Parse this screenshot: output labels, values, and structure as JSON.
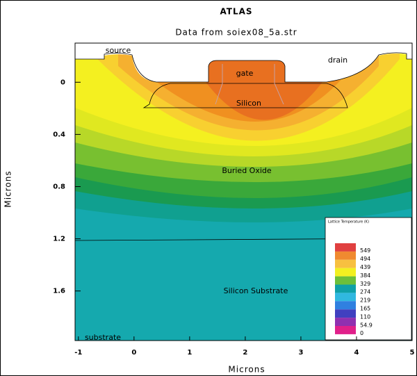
{
  "chart_data": {
    "type": "contour",
    "title": "ATLAS",
    "subtitle": "Data from soiex08_5a.str",
    "xlabel": "Microns",
    "ylabel": "Microns",
    "xlim": [
      -1.06,
      5
    ],
    "ylim": [
      -0.3,
      1.98
    ],
    "y_inverted": true,
    "xticks": [
      -1,
      0,
      1,
      2,
      3,
      4,
      5
    ],
    "yticks": [
      0,
      0.4,
      0.8,
      1.2,
      1.6
    ],
    "annotations": [
      "source",
      "drain",
      "gate",
      "Silicon",
      "Buried Oxide",
      "Silicon Substrate",
      "substrate"
    ],
    "colorbar": {
      "title": "Lattice Temperature (K)",
      "levels": [
        549,
        494,
        439,
        384,
        329,
        274,
        219,
        165,
        110,
        54.9,
        0
      ],
      "colors": [
        "#e04040",
        "#f08a30",
        "#f7c040",
        "#f2f020",
        "#6cbf3a",
        "#0fa0a8",
        "#30b8e0",
        "#3080e0",
        "#4040c0",
        "#9030b0",
        "#e0208a"
      ]
    }
  }
}
